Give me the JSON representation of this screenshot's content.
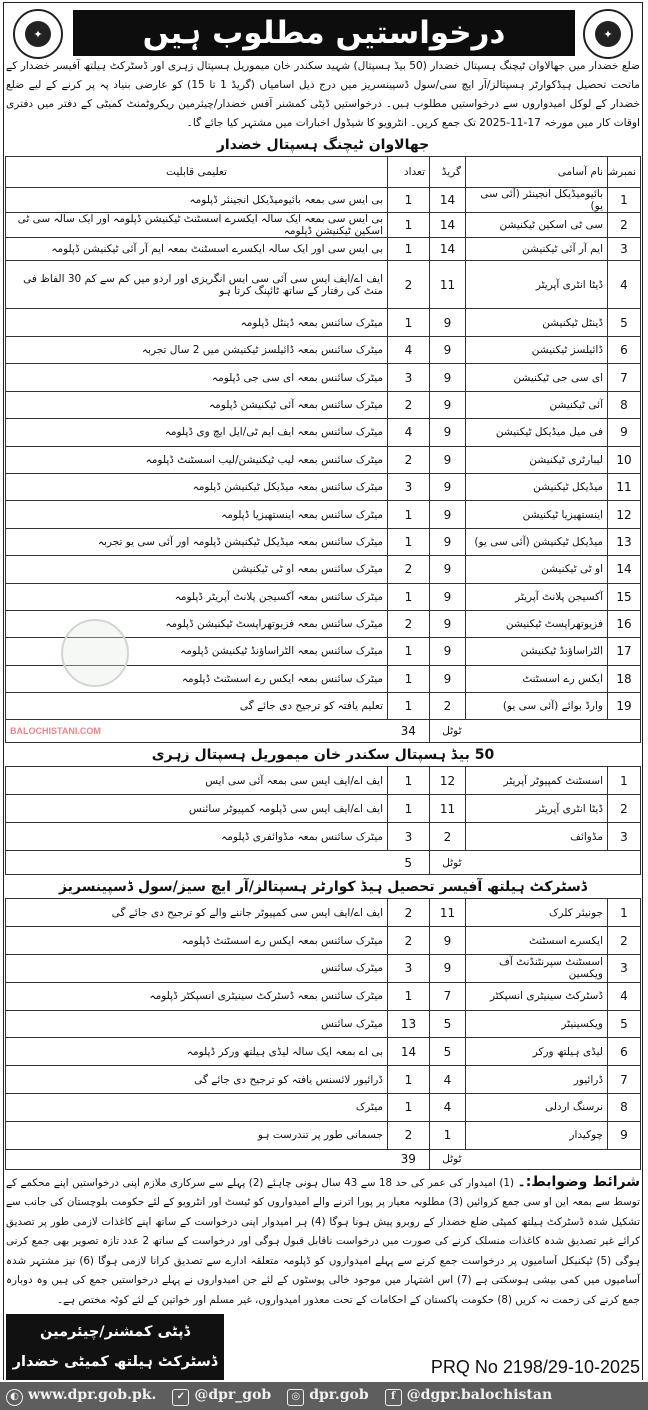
{
  "header": {
    "title": "درخواستیں مطلوب ہیں",
    "intro": "ضلع خضدار میں جھالاوان ٹیچنگ ہسپتال خضدار (50 بیڈ ہسپتال) شہید سکندر خان میموریل ہسپتال زہری اور ڈسٹرکٹ ہیلتھ آفیسر خضدار کے ماتحت تحصیل ہیڈکوارٹر ہسپتالز/آر ایچ سی/سول ڈسپینسریز میں درج ذیل اسامیاں (گریڈ 1 تا 15) کو عارضی بنیاد پہ پر کرنے کے لیے ضلع خضدار کے لوکل امیدواروں سے درخواستیں مطلوب ہیں۔ درخواستیں ڈپٹی کمشنر آفس خضدار/چیئرمین ریکروٹمنٹ کمیٹی کے دفتر میں دفتری اوقات کار میں مورخہ 17-11-2025 تک جمع کریں۔ انٹرویو کا شیڈول اخبارات میں مشتہر کیا جائے گا۔"
  },
  "columns": [
    "نمبرشمار",
    "نام آسامی",
    "گریڈ",
    "تعداد",
    "تعلیمی قابلیت"
  ],
  "total_label": "ٹوٹل",
  "sections": [
    {
      "title": "جھالاوان ٹیچنگ ہسپتال خضدار",
      "total": "34",
      "rows": [
        [
          "1",
          "بائیومیڈیکل انجینئر (آئی سی یو)",
          "14",
          "1",
          "بی ایس سی بمعہ بائیومیڈیکل انجینئر ڈپلومہ"
        ],
        [
          "2",
          "سی ٹی اسکین ٹیکنیشن",
          "14",
          "1",
          "بی ایس سی بمعہ ایک سالہ ایکسرے اسسٹنٹ ٹیکنیشن ڈپلومہ اور ایک سالہ سی ٹی اسکین ٹیکنیشن ڈپلومہ"
        ],
        [
          "3",
          "ایم آر آئی ٹیکنیشن",
          "14",
          "1",
          "بی ایس سی اور ایک سالہ ایکسرے اسسٹنٹ بمعہ ایم آر آئی ٹیکنیشن ڈپلومہ"
        ],
        [
          "4",
          "ڈیٹا انٹری آپریٹر",
          "11",
          "2",
          "ایف اے/ایف ایس سی آئی سی ایس انگریزی اور اردو میں کم سے کم 30 الفاظ فی منٹ کی رفتار کے ساتھ ٹائپنگ کرتا ہو"
        ],
        [
          "5",
          "ڈینٹل ٹیکنیشن",
          "9",
          "1",
          "میٹرک سائنس بمعہ ڈینٹل ڈپلومہ"
        ],
        [
          "6",
          "ڈائیلسز ٹیکنیشن",
          "9",
          "4",
          "میٹرک سائنس بمعہ ڈائیلسز ٹیکنیشن میں 2 سال تجربہ"
        ],
        [
          "7",
          "ای سی جی ٹیکنیشن",
          "9",
          "3",
          "میٹرک سائنس بمعہ ای سی جی ڈپلومہ"
        ],
        [
          "8",
          "آئی ٹیکنیشن",
          "9",
          "2",
          "میٹرک سائنس بمعہ آئی ٹیکنیشن ڈپلومہ"
        ],
        [
          "9",
          "فی میل میڈیکل ٹیکنیشن",
          "9",
          "4",
          "میٹرک سائنس بمعہ ایف ایم ٹی/ایل ایچ وی ڈپلومہ"
        ],
        [
          "10",
          "لیبارٹری ٹیکنیشن",
          "9",
          "2",
          "میٹرک سائنس بمعہ لیب ٹیکنیشن/لیب اسسٹنٹ ڈپلومہ"
        ],
        [
          "11",
          "میڈیکل ٹیکنیشن",
          "9",
          "3",
          "میٹرک سائنس بمعہ میڈیکل ٹیکنیشن ڈپلومہ"
        ],
        [
          "12",
          "اینستھیزیا ٹیکنیشن",
          "9",
          "1",
          "میٹرک سائنس بمعہ اینستھیزیا ڈپلومہ"
        ],
        [
          "13",
          "میڈیکل ٹیکنیشن (آئی سی یو)",
          "9",
          "1",
          "میٹرک سائنس بمعہ میڈیکل ٹیکنیشن ڈپلومہ اور آئی سی یو تجربہ"
        ],
        [
          "14",
          "او ٹی ٹیکنیشن",
          "9",
          "2",
          "میٹرک سائنس بمعہ او ٹی ٹیکنیشن"
        ],
        [
          "15",
          "آکسیجن پلانٹ آپریٹر",
          "9",
          "1",
          "میٹرک سائنس بمعہ آکسیجن پلانٹ آپریٹر ڈپلومہ"
        ],
        [
          "16",
          "فزیوتھراپسٹ ٹیکنیشن",
          "9",
          "2",
          "میٹرک سائنس بمعہ فزیوتھراپسٹ ٹیکنیشن ڈپلومہ"
        ],
        [
          "17",
          "الٹراساؤنڈ ٹیکنیشن",
          "9",
          "1",
          "میٹرک سائنس بمعہ الٹراساؤنڈ ٹیکنیشن ڈپلومہ"
        ],
        [
          "18",
          "ایکس رے اسسٹنٹ",
          "9",
          "1",
          "میٹرک سائنس بمعہ ایکس رے اسسٹنٹ ڈپلومہ"
        ],
        [
          "19",
          "وارڈ بوائے (آئی سی یو)",
          "2",
          "1",
          "تعلیم یافتہ کو ترجیح دی جائے گی"
        ]
      ]
    },
    {
      "title": "50 بیڈ ہسپتال سکندر خان میموریل ہسپتال زہری",
      "total": "5",
      "rows": [
        [
          "1",
          "اسسٹنٹ کمپیوٹر آپریٹر",
          "12",
          "1",
          "ایف اے/ایف ایس سی بمعہ آئی سی ایس"
        ],
        [
          "2",
          "ڈیٹا انٹری آپریٹر",
          "11",
          "1",
          "ایف اے/ایف ایس سی ڈپلومہ کمپیوٹر سائنس"
        ],
        [
          "3",
          "مڈوائف",
          "2",
          "3",
          "میٹرک سائنس بمعہ مڈوائفری ڈپلومہ"
        ]
      ]
    },
    {
      "title": "ڈسٹرکٹ ہیلتھ آفیسر تحصیل ہیڈ کوارٹر ہسپتالز/آر ایچ سیز/سول ڈسپینسریز",
      "total": "39",
      "rows": [
        [
          "1",
          "جونیئر کلرک",
          "11",
          "2",
          "ایف اے/ایف ایس سی کمپیوٹر جاننے والے کو ترجیح دی جائے گی"
        ],
        [
          "2",
          "ایکسرے اسسٹنٹ",
          "9",
          "2",
          "میٹرک سائنس بمعہ ایکس رے اسسٹنٹ ڈپلومہ"
        ],
        [
          "3",
          "اسسٹنٹ سپرنٹنڈنٹ آف ویکسین",
          "9",
          "3",
          "میٹرک سائنس"
        ],
        [
          "4",
          "ڈسٹرکٹ سینیٹری انسپکٹر",
          "7",
          "1",
          "میٹرک سائنس بمعہ ڈسٹرکٹ سینیٹری انسپکٹر ڈپلومہ"
        ],
        [
          "5",
          "ویکسینیٹر",
          "5",
          "13",
          "میٹرک سائنس"
        ],
        [
          "6",
          "لیڈی ہیلتھ ورکر",
          "5",
          "14",
          "بی اے بمعہ ایک سالہ لیڈی ہیلتھ ورکر ڈپلومہ"
        ],
        [
          "7",
          "ڈرائیور",
          "4",
          "1",
          "ڈرائیور لائسنس یافتہ کو ترجیح دی جائے گی"
        ],
        [
          "8",
          "نرسنگ اردلی",
          "4",
          "1",
          "میٹرک"
        ],
        [
          "9",
          "چوکیدار",
          "1",
          "2",
          "جسمانی طور پر تندرست ہو"
        ]
      ]
    }
  ],
  "conditions": {
    "heading": "شرائط وضوابط:۔",
    "text": "(1) امیدوار کی عمر کی حد 18 سے 43 سال ہونی چاہئے (2) پہلے سے سرکاری ملازم اپنی درخواستیں اپنے محکمے کے توسط سے بمعہ این او سی جمع کروائیں (3) مطلوبہ معیار پر پورا اترنے والے امیدواروں کو ٹیسٹ اور انٹرویو کے لئے حکومت بلوچستان کی جانب سے تشکیل شدہ ڈسٹرکٹ ہیلتھ کمیٹی ضلع خضدار کے روبرو پیش ہونا ہوگا (4) ہر امیدوار اپنی درخواست کے ساتھ اپنے کاغذات لازمی طور پر تصدیق کرائے غیر تصدیق شدہ کاغذات منسلک کرنے کی صورت میں درخواست ناقابل قبول ہوگی اور درخواست کے ساتھ 2 عدد تازہ تصویر بھی جمع کرنی ہوگی (5) ٹیکنیکل آسامیوں پر درخواست جمع کرنے سے پہلے امیدواروں کو ڈپلومہ متعلقہ ادارے سے تصدیق کرانا لازمی ہوگا (6) نیز مشتہر شدہ آسامیوں میں کمی بیشی ہوسکتی ہے (7) اس اشتہار میں موجود خالی پوسٹوں کے لئے جن امیدواروں نے پہلے درخواستیں جمع کی ہیں وہ دوبارہ جمع کرنے کی زحمت نہ کریں (8) حکومت پاکستان کے احکامات کے تحت معذور امیدواروں، غیر مسلم اور خواتین کے لئے کوٹہ مختص ہے۔"
  },
  "signature": {
    "line1": "ڈپٹی کمشنر/چیئرمین",
    "line2": "ڈسٹرکٹ ہیلتھ کمیٹی خضدار"
  },
  "prq": "PRQ No 2198/29-10-2025",
  "footer": {
    "website": "www.dpr.gob.pk.",
    "twitter": "@dpr_gob",
    "instagram": "dpr.gob",
    "facebook": "@dgpr.balochistan"
  },
  "watermark": "BALOCHISTANI.COM",
  "colors": {
    "banner": "#0d0d0d",
    "footer": "#5e5e5e",
    "watermark": "#e88888"
  }
}
